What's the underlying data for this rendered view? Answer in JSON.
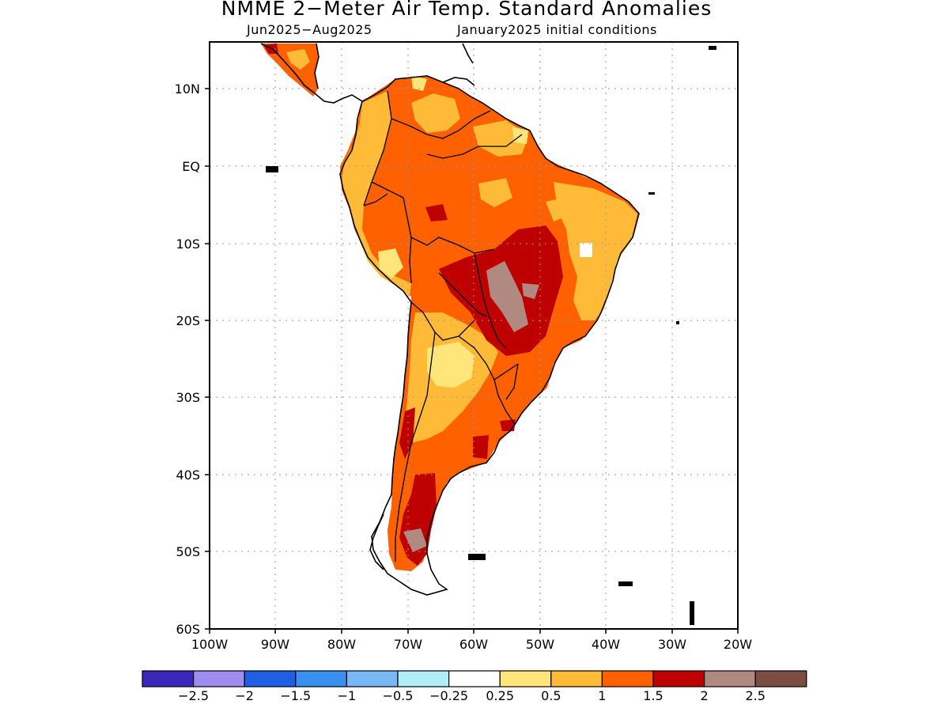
{
  "title": "NMME 2−Meter Air Temp. Standard Anomalies",
  "period": "Jun2025−Aug2025",
  "initial_conditions": "January2025 initial conditions",
  "lat_ticks": [
    "10N",
    "EQ",
    "10S",
    "20S",
    "30S",
    "40S",
    "50S",
    "60S"
  ],
  "lon_ticks": [
    "100W",
    "90W",
    "80W",
    "70W",
    "60W",
    "50W",
    "40W",
    "30W",
    "20W"
  ],
  "legend": {
    "colors": [
      "#3b28b8",
      "#9e8cf0",
      "#1f5fe6",
      "#3a90ef",
      "#78b8f5",
      "#b0eef7",
      "#ffffff",
      "#ffe57a",
      "#ffbb38",
      "#ff6000",
      "#be0000",
      "#b08a80",
      "#7a4e42"
    ],
    "labels": [
      "−2.5",
      "−2",
      "−1.5",
      "−1",
      "−0.5",
      "−0.25",
      "0.25",
      "0.5",
      "1",
      "1.5",
      "2",
      "2.5"
    ]
  }
}
